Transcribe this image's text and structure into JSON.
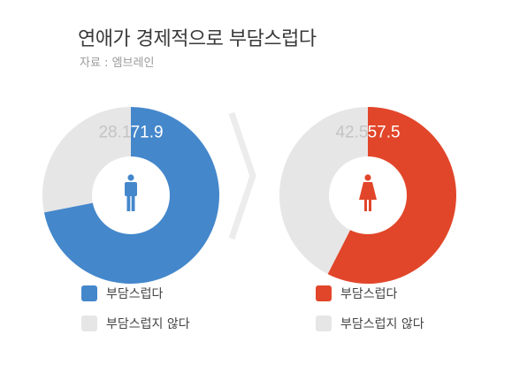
{
  "title": "연애가 경제적으로 부담스럽다",
  "source": "자료 : 엠브레인",
  "colors": {
    "male": "#4487cb",
    "female": "#e2462a",
    "rest": "#e6e6e6",
    "rest_text": "#c4c4c4"
  },
  "icons": {
    "male": "male-person-icon",
    "female": "female-person-icon",
    "separator": "chevron-right-icon"
  },
  "legend": {
    "male": [
      {
        "label": "부담스럽다",
        "color": "#4487cb"
      },
      {
        "label": "부담스럽지 않다",
        "color": "#e6e6e6"
      }
    ],
    "female": [
      {
        "label": "부담스럽다",
        "color": "#e2462a"
      },
      {
        "label": "부담스럽지 않다",
        "color": "#e6e6e6"
      }
    ]
  },
  "chart_data": [
    {
      "type": "pie",
      "donut": true,
      "categories": [
        "부담스럽다",
        "부담스럽지 않다"
      ],
      "values": [
        71.9,
        28.1
      ],
      "labels": [
        "71.9",
        "28.1"
      ],
      "colors": [
        "#4487cb",
        "#e6e6e6"
      ],
      "center_icon": "male-person-icon"
    },
    {
      "type": "pie",
      "donut": true,
      "categories": [
        "부담스럽다",
        "부담스럽지 않다"
      ],
      "values": [
        57.5,
        42.5
      ],
      "labels": [
        "57.5",
        "42.5"
      ],
      "colors": [
        "#e2462a",
        "#e6e6e6"
      ],
      "center_icon": "female-person-icon"
    }
  ]
}
